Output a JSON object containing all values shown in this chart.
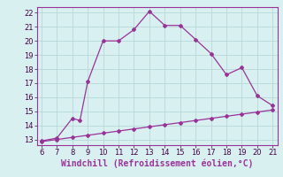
{
  "xlabel": "Windchill (Refroidissement éolien,°C)",
  "background_color": "#d8f0f0",
  "grid_color": "#b8d8d8",
  "line_color": "#993399",
  "xlim": [
    5.7,
    21.3
  ],
  "ylim": [
    12.6,
    22.4
  ],
  "xticks": [
    6,
    7,
    8,
    9,
    10,
    11,
    12,
    13,
    14,
    15,
    16,
    17,
    18,
    19,
    20,
    21
  ],
  "yticks": [
    13,
    14,
    15,
    16,
    17,
    18,
    19,
    20,
    21,
    22
  ],
  "line1_x": [
    6,
    7,
    8,
    8.5,
    9,
    10,
    11,
    12,
    13,
    14,
    15,
    16,
    17,
    18,
    19,
    20,
    21
  ],
  "line1_y": [
    12.9,
    13.1,
    14.5,
    14.35,
    17.1,
    20.0,
    20.0,
    20.8,
    22.1,
    21.1,
    21.1,
    20.1,
    19.1,
    17.6,
    18.1,
    16.1,
    15.4
  ],
  "line2_x": [
    6,
    7,
    8,
    9,
    10,
    11,
    12,
    13,
    14,
    15,
    16,
    17,
    18,
    19,
    20,
    21
  ],
  "line2_y": [
    12.85,
    13.0,
    13.15,
    13.3,
    13.45,
    13.6,
    13.75,
    13.9,
    14.05,
    14.2,
    14.35,
    14.5,
    14.65,
    14.8,
    14.95,
    15.1
  ],
  "marker": "D",
  "markersize": 2.0,
  "linewidth": 0.9,
  "tick_fontsize": 6,
  "xlabel_fontsize": 7
}
